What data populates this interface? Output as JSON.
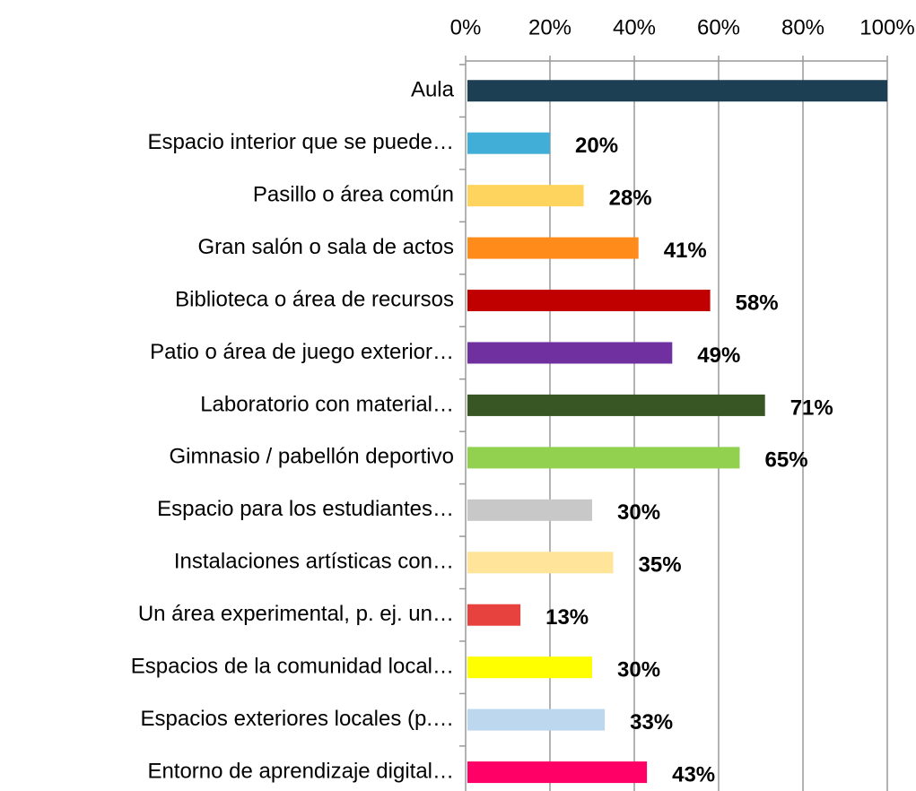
{
  "chart_data": {
    "type": "bar",
    "orientation": "horizontal",
    "categories": [
      "Aula",
      "Espacio interior que se puede…",
      "Pasillo o área común",
      "Gran salón o sala de actos",
      "Biblioteca o área de recursos",
      "Patio o área de juego exterior…",
      "Laboratorio con material…",
      "Gimnasio / pabellón deportivo",
      "Espacio para los estudiantes…",
      "Instalaciones artísticas con…",
      "Un área experimental, p. ej. un…",
      "Espacios de la comunidad local…",
      "Espacios exteriores locales (p.…",
      "Entorno de aprendizaje digital…"
    ],
    "values": [
      100,
      20,
      28,
      41,
      58,
      49,
      71,
      65,
      30,
      35,
      13,
      30,
      33,
      43
    ],
    "value_labels": [
      null,
      "20%",
      "28%",
      "41%",
      "58%",
      "49%",
      "71%",
      "65%",
      "30%",
      "35%",
      "13%",
      "30%",
      "33%",
      "43%"
    ],
    "colors": [
      "#1d3f54",
      "#40aed6",
      "#ffd45e",
      "#ff8c1a",
      "#c00000",
      "#7030a0",
      "#375623",
      "#92d050",
      "#c8c8c8",
      "#ffe499",
      "#e8423f",
      "#ffff00",
      "#bdd7ee",
      "#ff0066"
    ],
    "xlim": [
      0,
      100
    ],
    "xticks": [
      {
        "value": 0,
        "label": "0%"
      },
      {
        "value": 20,
        "label": "20%"
      },
      {
        "value": 40,
        "label": "40%"
      },
      {
        "value": 60,
        "label": "60%"
      },
      {
        "value": 80,
        "label": "80%"
      },
      {
        "value": 100,
        "label": "100%"
      }
    ],
    "grid": true
  }
}
